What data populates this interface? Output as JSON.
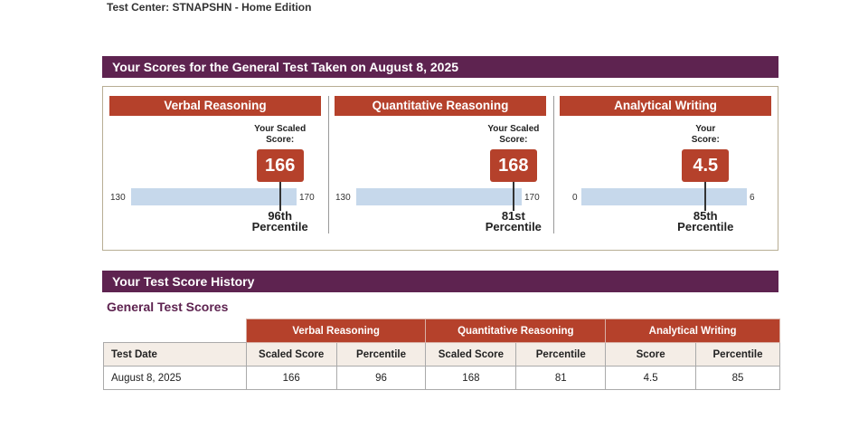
{
  "top_text": "Test Center: STNAPSHN - Home Edition",
  "scores_banner": "Your Scores for the General Test Taken on August 8, 2025",
  "sections": [
    {
      "title": "Verbal Reasoning",
      "score_label_1": "Your Scaled",
      "score_label_2": "Score:",
      "score": "166",
      "min": "130",
      "max": "170",
      "score_value": 166,
      "min_value": 130,
      "max_value": 170,
      "percentile_1": "96th",
      "percentile_2": "Percentile"
    },
    {
      "title": "Quantitative Reasoning",
      "score_label_1": "Your Scaled",
      "score_label_2": "Score:",
      "score": "168",
      "min": "130",
      "max": "170",
      "score_value": 168,
      "min_value": 130,
      "max_value": 170,
      "percentile_1": "81st",
      "percentile_2": "Percentile"
    },
    {
      "title": "Analytical Writing",
      "score_label_1": "Your",
      "score_label_2": "Score:",
      "score": "4.5",
      "min": "0",
      "max": "6",
      "score_value": 4.5,
      "min_value": 0,
      "max_value": 6,
      "percentile_1": "85th",
      "percentile_2": "Percentile"
    }
  ],
  "history_banner": "Your Test Score History",
  "history_subtitle": "General Test Scores",
  "table": {
    "groups": [
      "Verbal Reasoning",
      "Quantitative Reasoning",
      "Analytical Writing"
    ],
    "columns": [
      "Test Date",
      "Scaled Score",
      "Percentile",
      "Scaled Score",
      "Percentile",
      "Score",
      "Percentile"
    ],
    "rows": [
      [
        "August 8, 2025",
        "166",
        "96",
        "168",
        "81",
        "4.5",
        "85"
      ]
    ]
  },
  "colors": {
    "banner": "#5e2350",
    "header_red": "#b5412b",
    "bar": "#c6d8eb"
  }
}
